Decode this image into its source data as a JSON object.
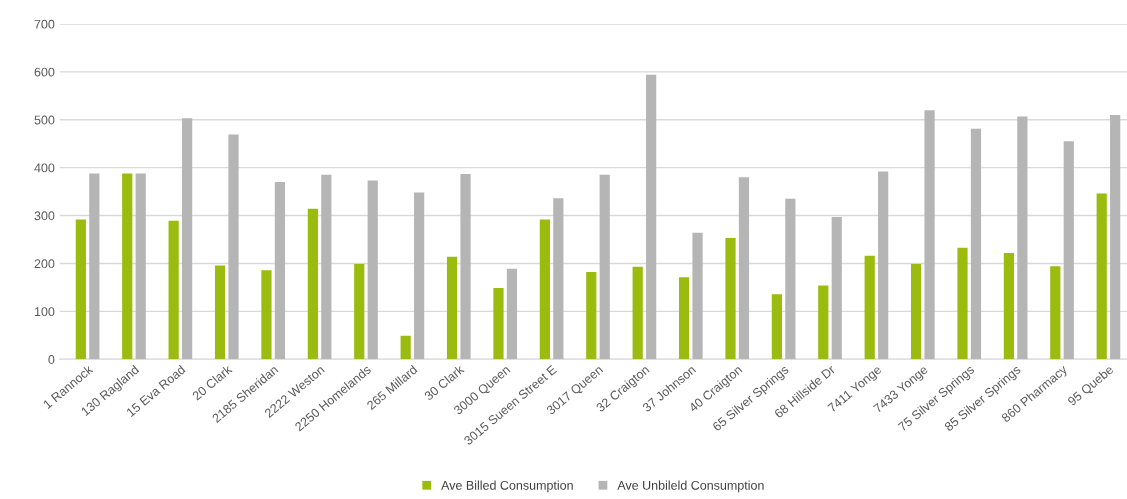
{
  "chart_data": {
    "type": "bar",
    "categories": [
      "1 Rannock",
      "130 Ragland",
      "15 Eva Road",
      "20 Clark",
      "2185 Sheridan",
      "2222 Weston",
      "2250 Homelands",
      "265 Millard",
      "30 Clark",
      "3000 Queen",
      "3015 Sueen Street E",
      "3017 Queen",
      "32 Craigton",
      "37 Johnson",
      "40 Craigton",
      "65 Silver Springs",
      "68 Hillside Dr",
      "7411 Yonge",
      "7433 Yonge",
      "75 Silver Springs",
      "85 Silver Springs",
      "860 Pharmacy",
      "95 Quebe"
    ],
    "series": [
      {
        "name": "Ave Billed Consumption",
        "color": "#9bbb0e",
        "values": [
          292,
          388,
          289,
          196,
          186,
          314,
          199,
          49,
          214,
          149,
          292,
          182,
          193,
          171,
          253,
          136,
          154,
          216,
          199,
          233,
          222,
          194,
          346
        ]
      },
      {
        "name": "Ave Unbileld Consumption",
        "color": "#b5b5b5",
        "values": [
          388,
          388,
          503,
          469,
          370,
          385,
          373,
          348,
          387,
          189,
          336,
          385,
          594,
          264,
          380,
          335,
          297,
          392,
          520,
          481,
          507,
          455,
          510
        ]
      }
    ],
    "ylim": [
      0,
      700
    ],
    "yticks": [
      0,
      100,
      200,
      300,
      400,
      500,
      600,
      700
    ],
    "grid": "y",
    "legend": "bottom"
  }
}
